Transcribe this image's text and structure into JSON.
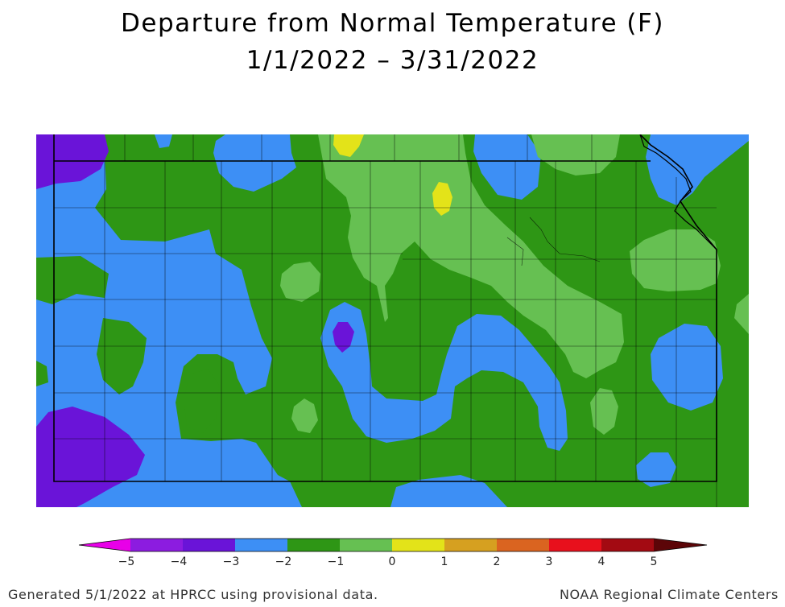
{
  "title": {
    "line1": "Departure from Normal Temperature (F)",
    "line2": "1/1/2022 – 3/31/2022"
  },
  "colors": {
    "below_-5": "#e800e8",
    "-5_to_-4": "#8c1ce0",
    "-4_to_-3": "#6a14d8",
    "-3_to_-2": "#3d8ff5",
    "-2_to_-1": "#2e9615",
    "-1_to_0": "#66c052",
    "0_to_1": "#e3e319",
    "1_to_2": "#d6a020",
    "2_to_3": "#da6420",
    "3_to_4": "#e8101c",
    "4_to_5": "#a30a12",
    "above_5": "#5c0508",
    "boundary": "#000000"
  },
  "legend": {
    "ticks": [
      "−5",
      "−4",
      "−3",
      "−2",
      "−1",
      "0",
      "1",
      "2",
      "3",
      "4",
      "5"
    ]
  },
  "footer": {
    "left": "Generated 5/1/2022 at HPRCC using provisional data.",
    "right": "NOAA Regional Climate Centers"
  }
}
